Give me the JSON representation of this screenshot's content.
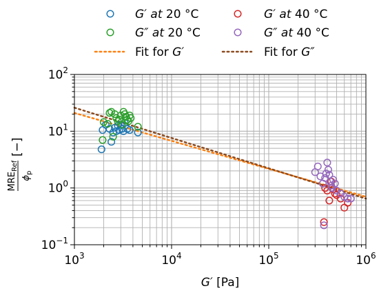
{
  "chart_data": {
    "type": "scatter",
    "x_scale": "log",
    "y_scale": "log",
    "xlim": [
      1000,
      1000000
    ],
    "ylim": [
      0.1,
      100
    ],
    "grid": true,
    "legend_placement": "top",
    "xlabel": {
      "var": "G′",
      "unit": "[Pa]"
    },
    "ylabel": {
      "num": "MRE",
      "num_sub": "Ref",
      "den": "ϕ",
      "den_sub": "p",
      "unit": "[−]"
    },
    "x_ticks": [
      {
        "value": 1000,
        "base": "10",
        "exp": "3"
      },
      {
        "value": 10000,
        "base": "10",
        "exp": "4"
      },
      {
        "value": 100000,
        "base": "10",
        "exp": "5"
      },
      {
        "value": 1000000,
        "base": "10",
        "exp": "6"
      }
    ],
    "y_ticks": [
      {
        "value": 0.1,
        "base": "10",
        "exp": "−1"
      },
      {
        "value": 1,
        "base": "10",
        "exp": "0"
      },
      {
        "value": 10,
        "base": "10",
        "exp": "1"
      },
      {
        "value": 100,
        "base": "10",
        "exp": "2"
      }
    ],
    "series": [
      {
        "name": "G′ at 20 °C",
        "name_var": "G′ at",
        "name_rest": "20 °C",
        "color": "#1f77b4",
        "marker": "circle",
        "points": [
          [
            1900,
            4.8
          ],
          [
            1950,
            10.5
          ],
          [
            2100,
            13
          ],
          [
            2300,
            11
          ],
          [
            2400,
            6.5
          ],
          [
            2500,
            9.5
          ],
          [
            2600,
            11.5
          ],
          [
            2700,
            10
          ],
          [
            2800,
            12.5
          ],
          [
            2900,
            10.5
          ],
          [
            3000,
            13
          ],
          [
            3100,
            11
          ],
          [
            3200,
            10
          ],
          [
            3300,
            14
          ],
          [
            3500,
            11
          ],
          [
            3700,
            10.5
          ],
          [
            4500,
            9.5
          ]
        ]
      },
      {
        "name": "G″ at 20 °C",
        "name_var": "G″ at",
        "name_rest": "20 °C",
        "color": "#2ca02c",
        "marker": "circle",
        "points": [
          [
            1950,
            7
          ],
          [
            2000,
            14.5
          ],
          [
            2200,
            13.5
          ],
          [
            2300,
            21
          ],
          [
            2400,
            22
          ],
          [
            2500,
            8
          ],
          [
            2600,
            20
          ],
          [
            2700,
            17
          ],
          [
            2800,
            15
          ],
          [
            2900,
            16
          ],
          [
            3000,
            19
          ],
          [
            3100,
            13
          ],
          [
            3200,
            22
          ],
          [
            3300,
            20
          ],
          [
            3400,
            18
          ],
          [
            3500,
            16
          ],
          [
            3600,
            15
          ],
          [
            3700,
            19
          ],
          [
            3800,
            17
          ],
          [
            4500,
            12
          ]
        ]
      },
      {
        "name": "G′ at 40 °C",
        "name_var": "G′ at",
        "name_rest": "40 °C",
        "color": "#d62728",
        "marker": "circle",
        "points": [
          [
            370000,
            0.25
          ],
          [
            380000,
            1.0
          ],
          [
            400000,
            0.9
          ],
          [
            420000,
            0.6
          ],
          [
            440000,
            1.3
          ],
          [
            460000,
            0.95
          ],
          [
            480000,
            0.8
          ],
          [
            500000,
            0.75
          ],
          [
            550000,
            0.65
          ],
          [
            600000,
            0.45
          ],
          [
            650000,
            0.55
          ]
        ]
      },
      {
        "name": "G″ at 40 °C",
        "name_var": "G″ at",
        "name_rest": "40 °C",
        "color": "#9467bd",
        "marker": "circle",
        "points": [
          [
            300000,
            1.9
          ],
          [
            320000,
            2.4
          ],
          [
            340000,
            1.6
          ],
          [
            360000,
            1.2
          ],
          [
            370000,
            0.22
          ],
          [
            380000,
            1.5
          ],
          [
            390000,
            1.8
          ],
          [
            400000,
            2.8
          ],
          [
            410000,
            2.1
          ],
          [
            420000,
            1.7
          ],
          [
            430000,
            1.3
          ],
          [
            440000,
            1.1
          ],
          [
            450000,
            1.0
          ],
          [
            460000,
            1.4
          ],
          [
            480000,
            1.2
          ],
          [
            500000,
            0.9
          ],
          [
            550000,
            0.8
          ],
          [
            600000,
            0.7
          ],
          [
            650000,
            0.65
          ],
          [
            700000,
            0.65
          ]
        ]
      }
    ],
    "fits": [
      {
        "name": "Fit for G′",
        "name_text": "Fit for",
        "name_var": "G′",
        "color": "#ff7f0e",
        "style": "dotted",
        "line": [
          [
            1000,
            21
          ],
          [
            1000000,
            0.7
          ]
        ]
      },
      {
        "name": "Fit for G″",
        "name_text": "Fit for",
        "name_var": "G″",
        "color": "#8c4a1e",
        "style": "dotted",
        "line": [
          [
            1000,
            26
          ],
          [
            1000000,
            0.65
          ]
        ]
      }
    ]
  }
}
